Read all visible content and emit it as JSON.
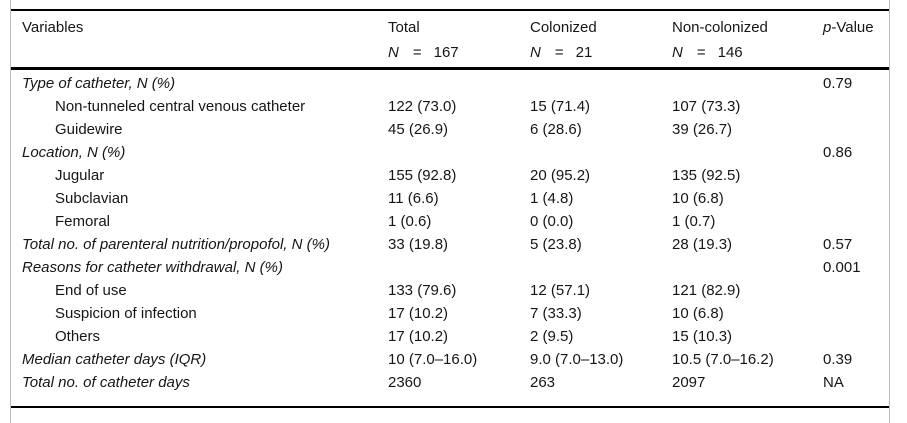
{
  "table": {
    "columns": [
      {
        "label": "Variables"
      },
      {
        "label": "Total",
        "n_label": "N",
        "eq": "=",
        "n_value": "167"
      },
      {
        "label": "Colonized",
        "n_label": "N",
        "eq": "=",
        "n_value": "21"
      },
      {
        "label": "Non-colonized",
        "n_label": "N",
        "eq": "=",
        "n_value": "146"
      },
      {
        "label_italic": "p",
        "label_rest": "-Value"
      }
    ],
    "rows": [
      {
        "label": "Type of catheter, N (%)",
        "total": "",
        "colonized": "",
        "non_colonized": "",
        "p": "0.79"
      },
      {
        "label": "Non-tunneled central venous catheter",
        "total": "122 (73.0)",
        "colonized": "15 (71.4)",
        "non_colonized": "107 (73.3)",
        "p": ""
      },
      {
        "label": "Guidewire",
        "total": "45 (26.9)",
        "colonized": "6 (28.6)",
        "non_colonized": "39 (26.7)",
        "p": ""
      },
      {
        "label": "Location, N (%)",
        "total": "",
        "colonized": "",
        "non_colonized": "",
        "p": "0.86"
      },
      {
        "label": "Jugular",
        "total": "155 (92.8)",
        "colonized": "20 (95.2)",
        "non_colonized": "135 (92.5)",
        "p": ""
      },
      {
        "label": "Subclavian",
        "total": "11 (6.6)",
        "colonized": "1 (4.8)",
        "non_colonized": "10 (6.8)",
        "p": ""
      },
      {
        "label": "Femoral",
        "total": "1 (0.6)",
        "colonized": "0 (0.0)",
        "non_colonized": "1 (0.7)",
        "p": ""
      },
      {
        "label": "Total no. of parenteral nutrition/propofol, N (%)",
        "total": "33 (19.8)",
        "colonized": "5 (23.8)",
        "non_colonized": "28 (19.3)",
        "p": "0.57"
      },
      {
        "label": "Reasons for catheter withdrawal, N (%)",
        "total": "",
        "colonized": "",
        "non_colonized": "",
        "p": "0.001"
      },
      {
        "label": "End of use",
        "total": "133 (79.6)",
        "colonized": "12 (57.1)",
        "non_colonized": "121 (82.9)",
        "p": ""
      },
      {
        "label": "Suspicion of infection",
        "total": "17 (10.2)",
        "colonized": "7 (33.3)",
        "non_colonized": "10 (6.8)",
        "p": ""
      },
      {
        "label": "Others",
        "total": "17 (10.2)",
        "colonized": "2 (9.5)",
        "non_colonized": "15 (10.3)",
        "p": ""
      },
      {
        "label": "Median catheter days (IQR)",
        "total": "10 (7.0–16.0)",
        "colonized": "9.0 (7.0–13.0)",
        "non_colonized": "10.5 (7.0–16.2)",
        "p": "0.39"
      },
      {
        "label": "Total no. of catheter days",
        "total": "2360",
        "colonized": "263",
        "non_colonized": "2097",
        "p": "NA"
      }
    ]
  },
  "colors": {
    "rule": "#000000",
    "frame_border": "#bdbdbd",
    "text": "#161616"
  }
}
